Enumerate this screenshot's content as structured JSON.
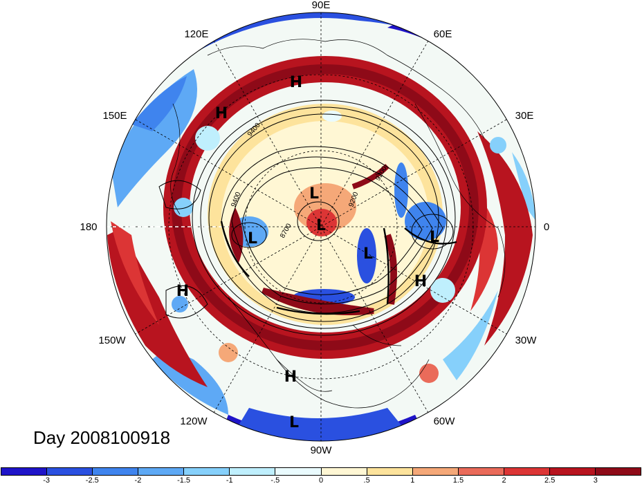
{
  "map": {
    "projection": "north-polar-stereographic",
    "longitude_labels": {
      "top": "90E",
      "upper_left": "120E",
      "upper_right": "60E",
      "left_upper": "150E",
      "right_upper": "30E",
      "left": "180",
      "right": "0",
      "left_lower": "150W",
      "right_lower": "30W",
      "lower_left": "120W",
      "lower_right": "60W",
      "bottom": "90W"
    },
    "pressure_centers": [
      "H",
      "H",
      "H",
      "H",
      "H",
      "L",
      "L",
      "L",
      "L",
      "L",
      "L"
    ],
    "contour_labels": [
      "9200",
      "9400",
      "8700",
      "9400",
      "9200"
    ]
  },
  "title": "Day 2008100918",
  "colorbar": {
    "ticks": [
      "-3",
      "-2.5",
      "-2",
      "-1.5",
      "-1",
      "-.5",
      "0",
      ".5",
      "1",
      "1.5",
      "2",
      "2.5",
      "3"
    ],
    "colors": [
      "#1f14c8",
      "#2a50e0",
      "#3f84ee",
      "#5ea9f5",
      "#86d0fb",
      "#bfeffd",
      "#eafbfe",
      "#fff7d4",
      "#fde39c",
      "#f5a878",
      "#ea6b5a",
      "#dc3535",
      "#b8141f",
      "#8e0a18"
    ]
  }
}
